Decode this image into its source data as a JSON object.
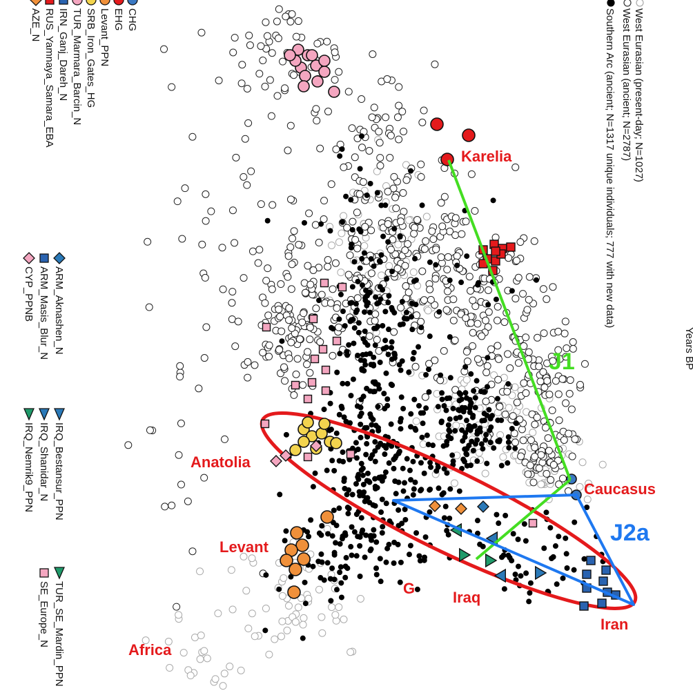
{
  "chart_data": {
    "type": "scatter",
    "title": "",
    "xlabel": "",
    "ylabel": "",
    "legend_top": [
      {
        "label": "West Eurasian (present-day; N=1027)",
        "fill": "#ffffff",
        "stroke": "#aaaaaa"
      },
      {
        "label": "West Eurasian (ancient; N=2787)",
        "fill": "#ffffff",
        "stroke": "#333333"
      },
      {
        "label": "Southern Arc (ancient; N=1317 unique individuals; 777 with new data)",
        "fill": "#000000",
        "stroke": "#000000"
      }
    ],
    "corner_label": "Years BP",
    "legend_groups": [
      {
        "name": "left",
        "items": [
          {
            "label": "CHG",
            "shape": "circle",
            "fill": "#3a78c2"
          },
          {
            "label": "EHG",
            "shape": "circle",
            "fill": "#e41a1c"
          },
          {
            "label": "Levant_PPN",
            "shape": "circle",
            "fill": "#f0903a"
          },
          {
            "label": "SRB_Iron_Gates_HG",
            "shape": "circle",
            "fill": "#f3d44e"
          },
          {
            "label": "TUR_Marmara_Barcin_N",
            "shape": "circle",
            "fill": "#f4a6c0"
          },
          {
            "label": "IRN_Ganj_Dareh_N",
            "shape": "square",
            "fill": "#2a63b0"
          },
          {
            "label": "RUS_Yamnaya_Samara_EBA",
            "shape": "square",
            "fill": "#e41a1c"
          },
          {
            "label": "AZE_N",
            "shape": "diamond",
            "fill": "#f0903a"
          }
        ]
      },
      {
        "name": "middle1",
        "items": [
          {
            "label": "ARM_Aknashen_N",
            "shape": "diamond",
            "fill": "#2a79b8"
          },
          {
            "label": "ARM_Masis_Blur_N",
            "shape": "square",
            "fill": "#2a63b0"
          },
          {
            "label": "CYP_PPNB",
            "shape": "diamond",
            "fill": "#f4a6c0"
          }
        ]
      },
      {
        "name": "middle2",
        "items": [
          {
            "label": "IRQ_Bestansur_PPN",
            "shape": "triangle",
            "fill": "#2a79b8"
          },
          {
            "label": "IRQ_Shanidar_N",
            "shape": "triangle",
            "fill": "#2a79b8"
          },
          {
            "label": "IRQ_Nemrik9_PPN",
            "shape": "triangle",
            "fill": "#1f9a6a"
          }
        ]
      },
      {
        "name": "right",
        "items": [
          {
            "label": "TUR_SE_Mardin_PPN",
            "shape": "triangle",
            "fill": "#1f9a6a"
          },
          {
            "label": "SE_Europe_N",
            "shape": "square",
            "fill": "#f4a6c0"
          }
        ]
      }
    ],
    "region_labels": [
      "Karelia",
      "Anatolia",
      "Caucasus",
      "Levant",
      "Iraq",
      "Iran",
      "Africa",
      "G"
    ],
    "haplogroup_labels": [
      {
        "label": "J1",
        "color": "#44dd22"
      },
      {
        "label": "J2a",
        "color": "#1e78f0"
      }
    ],
    "series": [
      {
        "name": "EHG",
        "points": [
          [
            648,
            231
          ],
          [
            633,
            180
          ],
          [
            679,
            196
          ]
        ]
      },
      {
        "name": "CHG",
        "points": [
          [
            828,
            694
          ],
          [
            835,
            717
          ]
        ]
      },
      {
        "name": "Levant_PPN",
        "points": [
          [
            430,
            772
          ],
          [
            438,
            790
          ],
          [
            422,
            797
          ],
          [
            440,
            810
          ],
          [
            415,
            812
          ],
          [
            428,
            825
          ],
          [
            474,
            749
          ],
          [
            426,
            858
          ]
        ]
      }
    ],
    "colors": {
      "ellipse": "#e41a1c",
      "j1_line": "#44dd22",
      "j2a_line": "#1e78f0"
    }
  }
}
